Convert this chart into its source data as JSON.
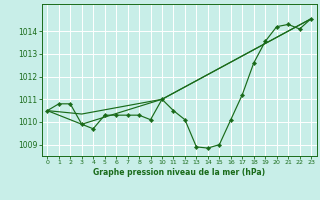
{
  "title": "Graphe pression niveau de la mer (hPa)",
  "bg_color": "#c8eee8",
  "grid_color": "#ffffff",
  "line_color": "#1a6b1a",
  "marker_color": "#1a6b1a",
  "xlim": [
    -0.5,
    23.5
  ],
  "ylim": [
    1008.5,
    1015.2
  ],
  "xticks": [
    0,
    1,
    2,
    3,
    4,
    5,
    6,
    7,
    8,
    9,
    10,
    11,
    12,
    13,
    14,
    15,
    16,
    17,
    18,
    19,
    20,
    21,
    22,
    23
  ],
  "yticks": [
    1009,
    1010,
    1011,
    1012,
    1013,
    1014
  ],
  "series1": [
    1010.5,
    1010.8,
    1010.8,
    1009.9,
    1009.7,
    1010.3,
    1010.3,
    1010.3,
    1010.3,
    1010.1,
    1011.0,
    1010.5,
    1010.1,
    1008.9,
    1008.85,
    1009.0,
    1010.1,
    1011.2,
    1012.6,
    1013.55,
    1014.2,
    1014.3,
    1014.1,
    1014.55
  ],
  "series3_x": [
    0,
    3,
    10,
    23
  ],
  "series3_y": [
    1010.5,
    1010.35,
    1011.0,
    1014.55
  ],
  "series4_x": [
    0,
    3,
    10,
    23
  ],
  "series4_y": [
    1010.5,
    1009.9,
    1011.0,
    1014.55
  ]
}
